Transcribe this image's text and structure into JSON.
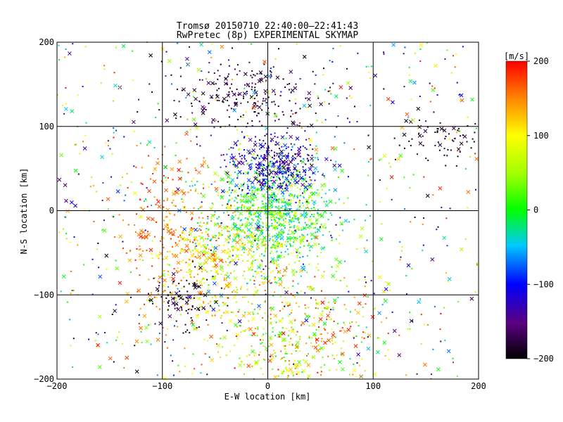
{
  "chart_data": {
    "type": "scatter",
    "title": "Tromsø 20150710 22:40:00–22:41:43",
    "subtitle": "RwPretec (8p) EXPERIMENTAL SKYMAP",
    "xlabel": "E-W location [km]",
    "ylabel": "N-S location [km]",
    "xlim": [
      -200,
      200
    ],
    "ylim": [
      -200,
      200
    ],
    "x_ticks": [
      -200,
      -100,
      0,
      100,
      200
    ],
    "y_ticks": [
      -200,
      -100,
      0,
      100,
      200
    ],
    "grid": true,
    "marker_types": [
      "dot",
      "cross"
    ],
    "colorbar": {
      "label": "[m/s]",
      "min": -200,
      "max": 200,
      "ticks": [
        200,
        100,
        0,
        -100,
        -200
      ],
      "colormap": "rainbow (black-purple-blue-cyan-green-yellow-red)"
    },
    "point_clusters": [
      {
        "region": "central",
        "center": [
          5,
          -5
        ],
        "spread": [
          30,
          35
        ],
        "velocity_range": [
          -60,
          80
        ],
        "approx_count": 900
      },
      {
        "region": "north-blue",
        "center": [
          5,
          55
        ],
        "spread": [
          22,
          18
        ],
        "velocity_range": [
          -180,
          -70
        ],
        "approx_count": 350
      },
      {
        "region": "north-black",
        "center": [
          -20,
          140
        ],
        "spread": [
          40,
          20
        ],
        "velocity_range": [
          -200,
          -150
        ],
        "approx_count": 220
      },
      {
        "region": "south-west-yellow",
        "center": [
          -45,
          -60
        ],
        "spread": [
          35,
          40
        ],
        "velocity_range": [
          40,
          160
        ],
        "approx_count": 400
      },
      {
        "region": "west-red",
        "center": [
          -95,
          -20
        ],
        "spread": [
          25,
          45
        ],
        "velocity_range": [
          130,
          200
        ],
        "approx_count": 200
      },
      {
        "region": "south-west-black",
        "center": [
          -85,
          -105
        ],
        "spread": [
          18,
          15
        ],
        "velocity_range": [
          -200,
          -160
        ],
        "approx_count": 90
      },
      {
        "region": "north-east-black",
        "center": [
          165,
          85
        ],
        "spread": [
          25,
          12
        ],
        "velocity_range": [
          -200,
          -170
        ],
        "approx_count": 70
      },
      {
        "region": "south-east-mixed",
        "center": [
          30,
          -150
        ],
        "spread": [
          40,
          40
        ],
        "velocity_range": [
          -20,
          200
        ],
        "approx_count": 450
      },
      {
        "region": "scattered",
        "center": [
          0,
          0
        ],
        "spread": [
          200,
          200
        ],
        "velocity_range": [
          -200,
          200
        ],
        "approx_count": 700
      }
    ]
  }
}
